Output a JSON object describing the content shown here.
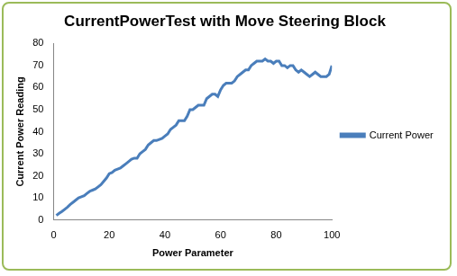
{
  "chart_data": {
    "type": "line",
    "title": "CurrentPowerTest with Move Steering Block",
    "x_label": "Power Parameter",
    "y_label": "Current Power Reading",
    "x": [
      1,
      2,
      3,
      4,
      5,
      6,
      7,
      8,
      9,
      10,
      11,
      12,
      13,
      14,
      15,
      16,
      17,
      18,
      19,
      20,
      21,
      22,
      23,
      24,
      25,
      26,
      27,
      28,
      29,
      30,
      31,
      32,
      33,
      34,
      35,
      36,
      37,
      38,
      39,
      40,
      41,
      42,
      43,
      44,
      45,
      46,
      47,
      48,
      49,
      50,
      51,
      52,
      53,
      54,
      55,
      56,
      57,
      58,
      59,
      60,
      61,
      62,
      63,
      64,
      65,
      66,
      67,
      68,
      69,
      70,
      71,
      72,
      73,
      74,
      75,
      76,
      77,
      78,
      79,
      80,
      81,
      82,
      83,
      84,
      85,
      86,
      87,
      88,
      89,
      90,
      91,
      92,
      93,
      94,
      95,
      96,
      97,
      98,
      99,
      100
    ],
    "series": [
      {
        "name": "Current Power",
        "color": "#4a7ebb",
        "marker": "none",
        "line_style": "solid",
        "values": [
          2,
          3,
          3.8,
          4.8,
          5.8,
          7,
          8,
          9,
          10,
          10.5,
          11,
          12,
          13,
          13.5,
          14,
          15,
          16,
          17.5,
          19,
          21,
          21.5,
          22.5,
          23,
          23.5,
          24.5,
          25.5,
          26.5,
          27.5,
          28,
          28,
          30,
          31,
          32,
          34,
          35,
          36,
          36,
          36.5,
          37,
          38,
          39,
          41,
          42,
          43,
          45,
          45,
          45,
          47,
          50,
          50,
          51,
          52,
          52,
          52,
          55,
          56,
          57,
          57,
          56,
          59,
          61,
          62,
          62,
          62,
          63,
          65,
          66,
          67,
          68,
          68,
          70,
          71,
          72,
          72,
          72,
          73,
          72,
          72,
          71,
          72,
          72,
          70,
          70,
          69,
          70,
          70,
          68,
          67,
          68,
          67,
          66,
          65,
          66,
          67,
          66,
          65,
          65,
          65,
          66,
          70
        ]
      }
    ],
    "xlim": [
      0,
      100
    ],
    "xticks": [
      0,
      20,
      40,
      60,
      80,
      100
    ],
    "ylim": [
      0,
      80
    ],
    "yticks": [
      0,
      10,
      20,
      30,
      40,
      50,
      60,
      70,
      80
    ],
    "grid": false,
    "legend": "right"
  }
}
